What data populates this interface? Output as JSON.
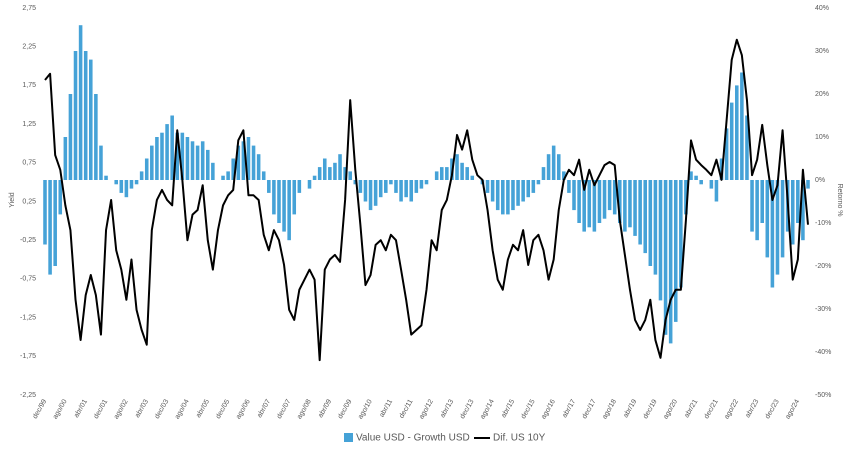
{
  "chart_data": {
    "type": "bar",
    "ylabel": "Yield",
    "y2label": "Retorno %",
    "categories": [
      "dec/99",
      null,
      null,
      null,
      "ago/00",
      null,
      null,
      null,
      "abr/01",
      null,
      null,
      null,
      "dec/01",
      null,
      null,
      null,
      "ago/02",
      null,
      null,
      null,
      "abr/03",
      null,
      null,
      null,
      "dec/03",
      null,
      null,
      null,
      "ago/04",
      null,
      null,
      null,
      "abr/05",
      null,
      null,
      null,
      "dec/05",
      null,
      null,
      null,
      "ago/06",
      null,
      null,
      null,
      "abr/07",
      null,
      null,
      null,
      "dec/07",
      null,
      null,
      null,
      "ago/08",
      null,
      null,
      null,
      "abr/09",
      null,
      null,
      null,
      "dec/09",
      null,
      null,
      null,
      "ago/10",
      null,
      null,
      null,
      "abr/11",
      null,
      null,
      null,
      "dec/11",
      null,
      null,
      null,
      "ago/12",
      null,
      null,
      null,
      "abr/13",
      null,
      null,
      null,
      "dec/13",
      null,
      null,
      null,
      "ago/14",
      null,
      null,
      null,
      "abr/15",
      null,
      null,
      null,
      "dec/15",
      null,
      null,
      null,
      "ago/16",
      null,
      null,
      null,
      "abr/17",
      null,
      null,
      null,
      "dec/17",
      null,
      null,
      null,
      "ago/18",
      null,
      null,
      null,
      "abr/19",
      null,
      null,
      null,
      "dec/19",
      null,
      null,
      null,
      "ago/20",
      null,
      null,
      null,
      "abr/21",
      null,
      null,
      null,
      "dec/21",
      null,
      null,
      null,
      "ago/22",
      null,
      null,
      null,
      "abr/23",
      null,
      null,
      null,
      "dec/23",
      null,
      null,
      null,
      "ago/24",
      null,
      null
    ],
    "series": [
      {
        "name": "Value USD - Growth USD",
        "type": "bar",
        "axis": "y2",
        "color": "#45a2d7",
        "values": [
          -15,
          -22,
          -20,
          -8,
          10,
          20,
          30,
          36,
          30,
          28,
          20,
          8,
          1,
          0,
          -1,
          -3,
          -4,
          -2,
          -1,
          2,
          5,
          8,
          10,
          11,
          13,
          15,
          11,
          11,
          10,
          9,
          8,
          9,
          7,
          4,
          0,
          1,
          2,
          5,
          8,
          9,
          10,
          8,
          6,
          2,
          -3,
          -8,
          -10,
          -12,
          -14,
          -8,
          -3,
          0,
          -2,
          1,
          3,
          5,
          3,
          4,
          6,
          3,
          2,
          -1,
          -3,
          -5,
          -7,
          -6,
          -4,
          -3,
          -1,
          -3,
          -5,
          -4,
          -5,
          -3,
          -2,
          -1,
          0,
          2,
          3,
          3,
          5,
          6,
          4,
          3,
          1,
          0,
          -1,
          -3,
          -5,
          -7,
          -8,
          -8,
          -7,
          -6,
          -5,
          -4,
          -3,
          -1,
          3,
          6,
          8,
          6,
          2,
          -3,
          -7,
          -10,
          -12,
          -11,
          -12,
          -10,
          -9,
          -7,
          -8,
          -10,
          -12,
          -11,
          -13,
          -15,
          -17,
          -20,
          -22,
          -28,
          -36,
          -38,
          -33,
          -25,
          -8,
          2,
          1,
          -1,
          0,
          -2,
          -5,
          5,
          12,
          18,
          22,
          25,
          15,
          -12,
          -14,
          -10,
          -18,
          -25,
          -22,
          -18,
          -12,
          -15,
          -10,
          -14,
          -2
        ]
      },
      {
        "name": "Dif. US 10Y",
        "type": "line",
        "axis": "y",
        "color": "#000000",
        "values": [
          1.82,
          1.9,
          0.85,
          0.66,
          0.2,
          -0.12,
          -1.02,
          -1.54,
          -0.96,
          -0.7,
          -0.96,
          -1.47,
          -0.12,
          0.27,
          -0.38,
          -0.63,
          -1.02,
          -0.5,
          -1.15,
          -1.41,
          -1.6,
          -0.12,
          0.27,
          0.4,
          0.27,
          0.2,
          1.17,
          0.53,
          -0.25,
          0.08,
          0.14,
          0.46,
          -0.25,
          -0.63,
          -0.12,
          0.2,
          0.33,
          0.4,
          1.04,
          1.17,
          0.33,
          0.33,
          0.27,
          -0.18,
          -0.38,
          -0.12,
          -0.25,
          -0.57,
          -1.15,
          -1.28,
          -0.89,
          -0.76,
          -0.63,
          -0.76,
          -1.8,
          -0.63,
          -0.5,
          -0.44,
          -0.53,
          0.27,
          1.56,
          0.66,
          -0.05,
          -0.83,
          -0.7,
          -0.31,
          -0.25,
          -0.38,
          -0.18,
          -0.25,
          -0.63,
          -1.02,
          -1.47,
          -1.41,
          -1.35,
          -0.89,
          -0.25,
          -0.38,
          0.14,
          0.27,
          0.59,
          1.11,
          0.92,
          1.17,
          0.79,
          0.59,
          0.53,
          0.14,
          -0.38,
          -0.76,
          -0.89,
          -0.5,
          -0.31,
          -0.38,
          -0.12,
          -0.57,
          -0.25,
          -0.18,
          -0.38,
          -0.76,
          -0.5,
          0.14,
          0.53,
          0.66,
          0.59,
          0.79,
          0.4,
          0.66,
          0.46,
          0.59,
          0.72,
          0.76,
          0.72,
          0.01,
          -0.44,
          -0.89,
          -1.28,
          -1.41,
          -1.28,
          -1.02,
          -1.54,
          -1.77,
          -1.28,
          -1.02,
          -0.89,
          -0.89,
          0.01,
          1.04,
          0.79,
          0.72,
          0.66,
          0.59,
          0.79,
          0.53,
          1.3,
          2.08,
          2.34,
          2.14,
          1.56,
          0.59,
          0.79,
          1.24,
          0.72,
          0.27,
          0.46,
          1.17,
          0.27,
          -0.76,
          -0.5,
          0.66,
          -0.05
        ]
      }
    ],
    "ylim": [
      -2.25,
      2.75
    ],
    "yticks": [
      {
        "value": 2.75,
        "label": "2,75"
      },
      {
        "value": 2.25,
        "label": "2,25"
      },
      {
        "value": 1.75,
        "label": "1,75"
      },
      {
        "value": 1.25,
        "label": "1,25"
      },
      {
        "value": 0.75,
        "label": "0,75"
      },
      {
        "value": 0.25,
        "label": "0,25"
      },
      {
        "value": -0.25,
        "label": "-0,25"
      },
      {
        "value": -0.75,
        "label": "-0,75"
      },
      {
        "value": -1.25,
        "label": "-1,25"
      },
      {
        "value": -1.75,
        "label": "-1,75"
      },
      {
        "value": -2.25,
        "label": "-2,25"
      }
    ],
    "y2lim": [
      -50,
      40
    ],
    "y2ticks": [
      {
        "value": 40,
        "label": "40%"
      },
      {
        "value": 30,
        "label": "30%"
      },
      {
        "value": 20,
        "label": "20%"
      },
      {
        "value": 10,
        "label": "10%"
      },
      {
        "value": 0,
        "label": "0%"
      },
      {
        "value": -10,
        "label": "-10%"
      },
      {
        "value": -20,
        "label": "-20%"
      },
      {
        "value": -30,
        "label": "-30%"
      },
      {
        "value": -40,
        "label": "-40%"
      },
      {
        "value": -50,
        "label": "-50%"
      }
    ],
    "legend": "bottom"
  }
}
